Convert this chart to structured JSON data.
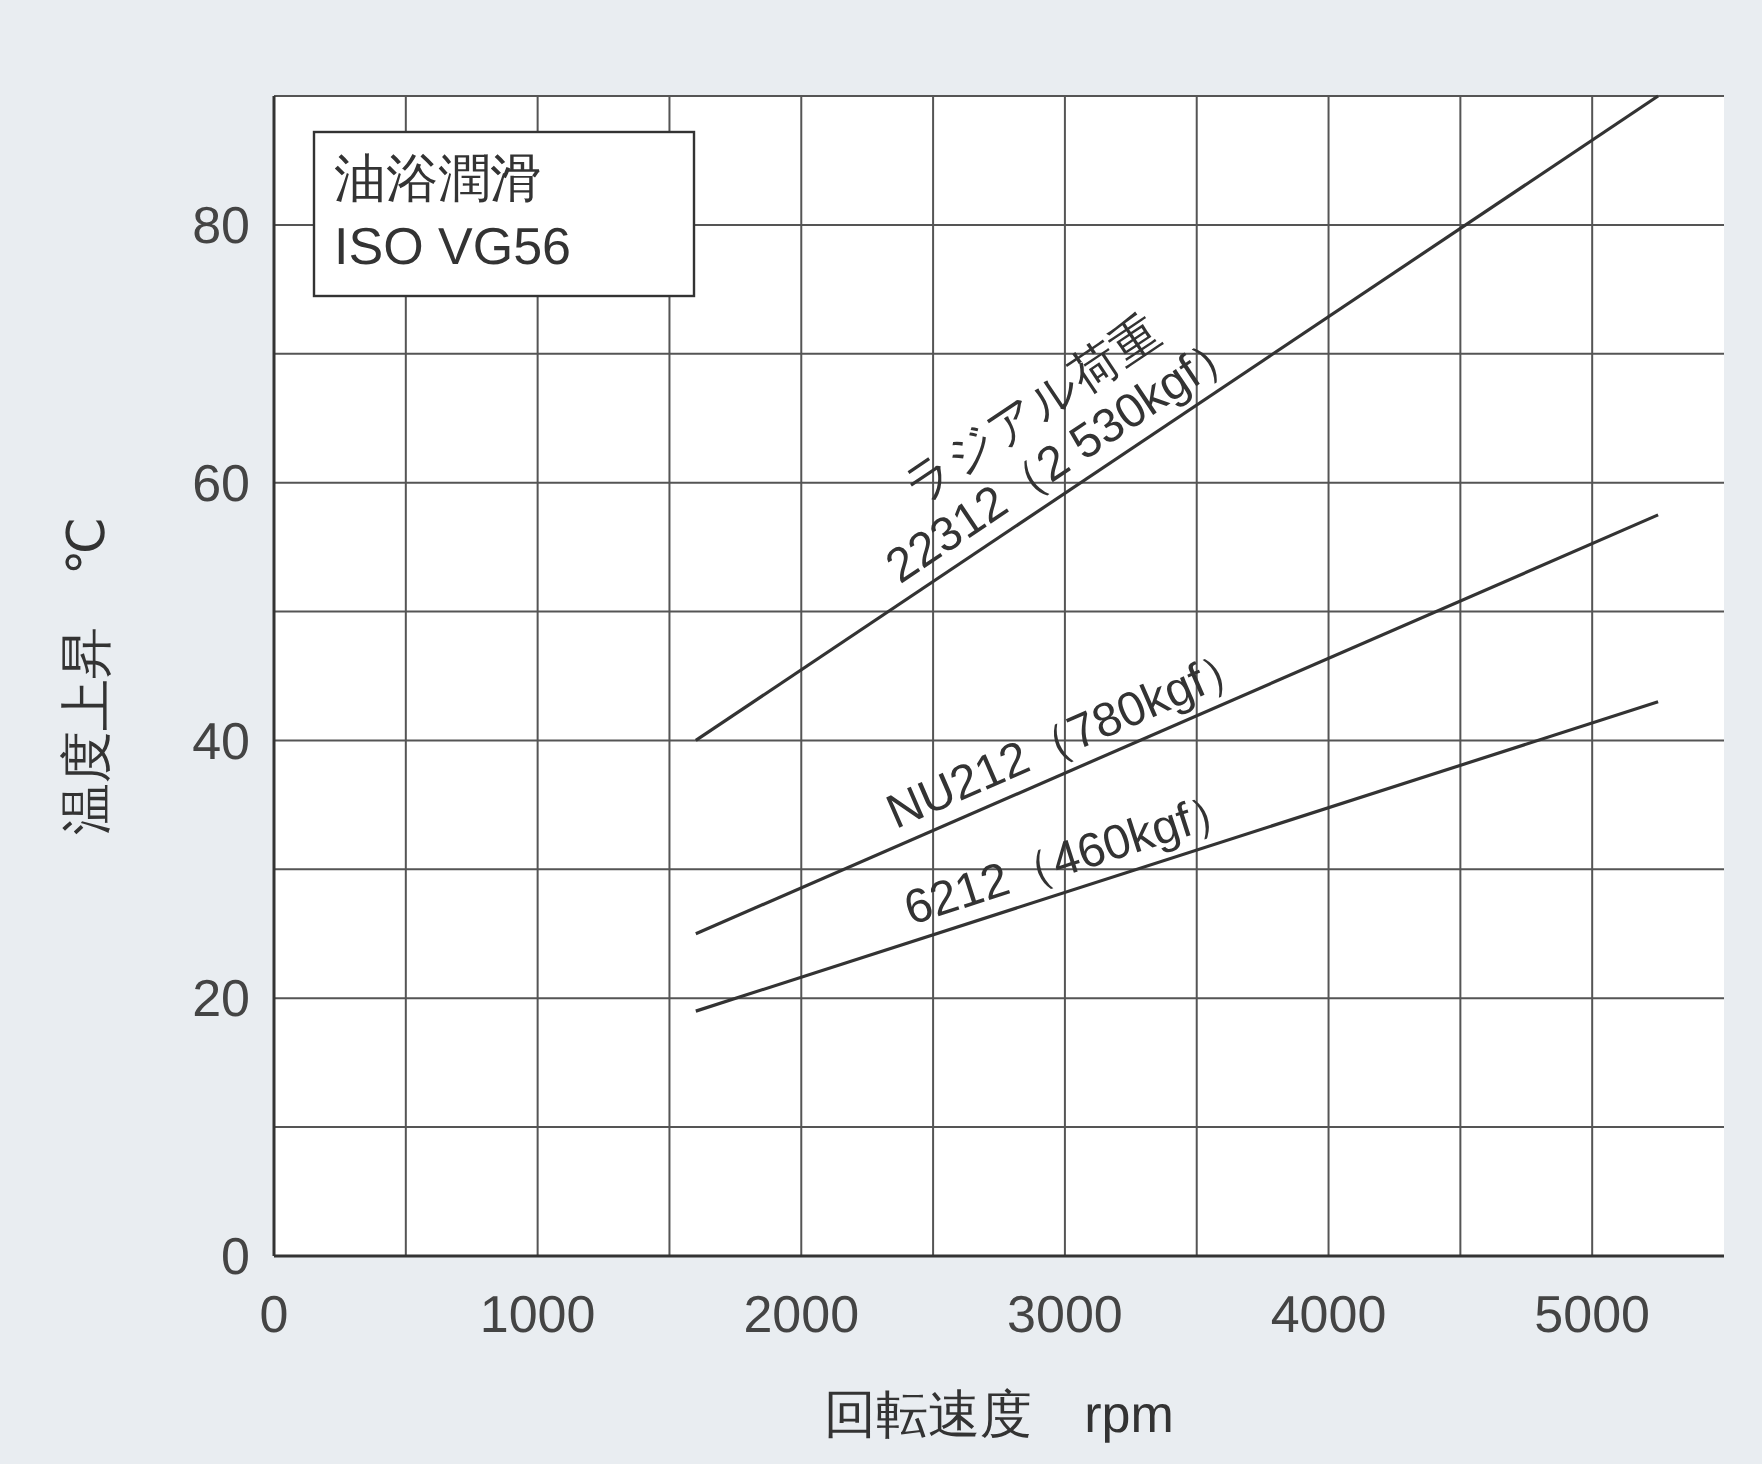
{
  "chart_data": {
    "type": "line",
    "xlabel": "回転速度　rpm",
    "ylabel": "温度上昇　℃",
    "xlim": [
      0,
      5500
    ],
    "ylim": [
      0,
      90
    ],
    "xticks": [
      0,
      {
        "value": 500,
        "label": null
      },
      1000,
      {
        "value": 1500,
        "label": null
      },
      2000,
      {
        "value": 2500,
        "label": null
      },
      3000,
      {
        "value": 3500,
        "label": null
      },
      4000,
      {
        "value": 4500,
        "label": null
      },
      5000
    ],
    "yticks": [
      0,
      {
        "value": 10,
        "label": null
      },
      20,
      {
        "value": 30,
        "label": null
      },
      40,
      {
        "value": 50,
        "label": null
      },
      60,
      {
        "value": 70,
        "label": null
      },
      80,
      {
        "value": 90,
        "label": null
      }
    ],
    "grid": true,
    "marker": "none",
    "line_style": "solid",
    "x": [
      1600,
      5250
    ],
    "series": [
      {
        "name": "ラジアル荷重\n22312（2 530kgf）",
        "color": "#333333",
        "values": [
          40,
          90
        ]
      },
      {
        "name": "NU212（780kgf）",
        "color": "#333333",
        "values": [
          25,
          57.5
        ]
      },
      {
        "name": "6212（460kgf）",
        "color": "#333333",
        "values": [
          19,
          43
        ]
      }
    ],
    "annotations": [
      "油浴潤滑",
      "ISO VG56"
    ]
  }
}
